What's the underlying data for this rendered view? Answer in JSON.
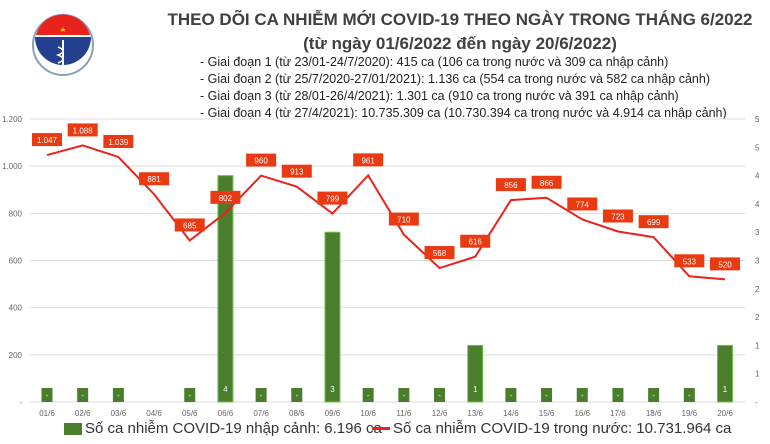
{
  "header": {
    "title": "THEO DÕI CA NHIỄM MỚI COVID-19 THEO NGÀY TRONG THÁNG 6/2022",
    "subtitle": "(từ ngày 01/6/2022 đến ngày 20/6/2022)",
    "notes": [
      "- Giai đoạn 1 (từ 23/01-24/7/2020): 415 ca (106 ca trong nước và 309 ca nhập cảnh)",
      "- Giai đoạn 2 (từ 25/7/2020-27/01/2021): 1.136 ca (554 ca trong nước và 582 ca nhập cảnh)",
      "- Giai đoạn 3 (từ 28/01-26/4/2021): 1.301 ca (910 ca trong nước và 391 ca nhập cảnh)",
      "- Giai đoạn 4 (từ 27/4/2021): 10.735.309 ca (10.730.394 ca trong nước và 4.914 ca nhập cảnh)"
    ],
    "logo_text": "BỘ Y TẾ MINISTRY OF HEALTH"
  },
  "chart_data": {
    "type": "bar+line",
    "categories": [
      "01/6",
      "02/6",
      "03/6",
      "04/6",
      "05/6",
      "06/6",
      "07/6",
      "08/6",
      "09/6",
      "10/6",
      "11/6",
      "12/6",
      "13/6",
      "14/6",
      "15/6",
      "16/6",
      "17/6",
      "18/6",
      "19/6",
      "20/6"
    ],
    "series": [
      {
        "name": "Số ca nhiễm COVID-19 nhập cảnh: 6.196 ca",
        "type": "bar",
        "axis": "right",
        "color": "#4a7d2c",
        "values": [
          0,
          0,
          0,
          null,
          0,
          4,
          0,
          0,
          3,
          0,
          0,
          0,
          1,
          0,
          0,
          0,
          0,
          0,
          0,
          1
        ],
        "labels": [
          "-",
          "-",
          "-",
          "",
          "-",
          "4",
          "-",
          "-",
          "3",
          "-",
          "-",
          "-",
          "1",
          "-",
          "-",
          "-",
          "-",
          "-",
          "-",
          "1"
        ]
      },
      {
        "name": "Số ca nhiễm COVID-19 trong nước: 10.731.964 ca",
        "type": "line",
        "axis": "left",
        "color": "#e8231b",
        "values": [
          1047,
          1088,
          1039,
          881,
          685,
          802,
          960,
          913,
          799,
          961,
          710,
          568,
          616,
          856,
          866,
          774,
          723,
          699,
          533,
          520
        ],
        "labels": [
          "1.047",
          "1.088",
          "1.039",
          "881",
          "685",
          "802",
          "960",
          "913",
          "799",
          "961",
          "710",
          "568",
          "616",
          "856",
          "866",
          "774",
          "723",
          "699",
          "533",
          "520"
        ]
      }
    ],
    "left_axis": {
      "range": [
        0,
        1200
      ],
      "ticks": [
        "-",
        "200",
        "400",
        "600",
        "800",
        "1.000",
        "1.200"
      ]
    },
    "right_axis": {
      "range": [
        0,
        5
      ],
      "ticks": [
        "-",
        "1",
        "1",
        "2",
        "2",
        "3",
        "3",
        "4",
        "4",
        "5",
        "5"
      ]
    },
    "grid": true,
    "legend": "bottom"
  }
}
